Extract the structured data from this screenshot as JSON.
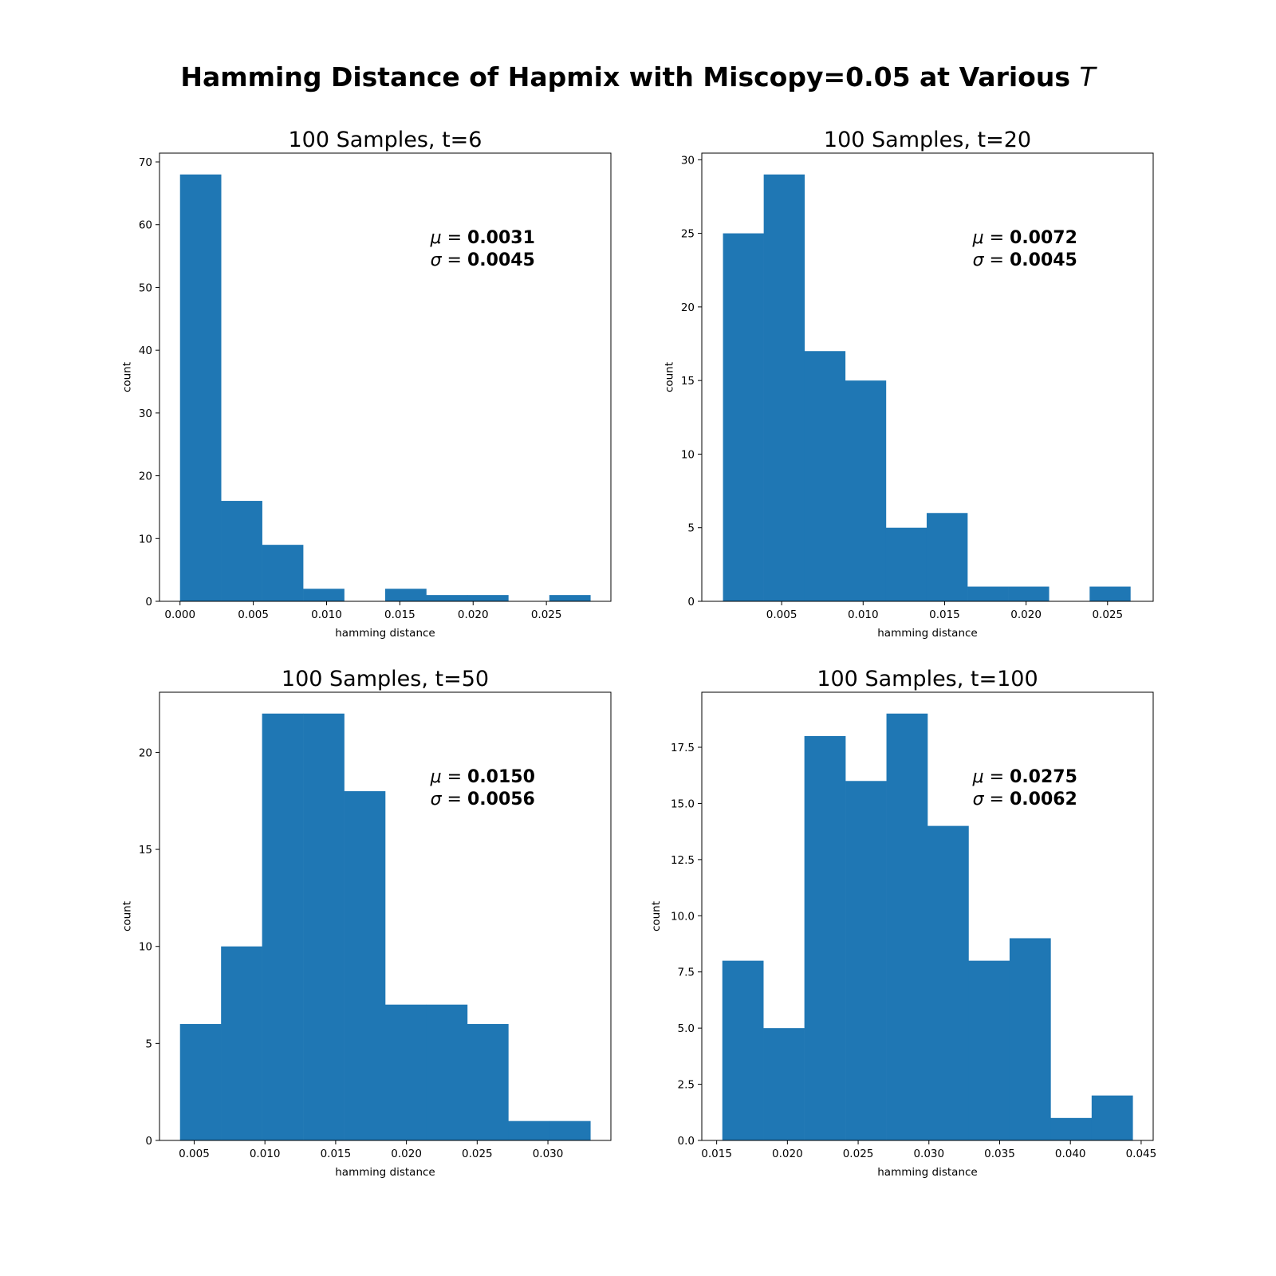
{
  "figure": {
    "title_main": "Hamming Distance of Hapmix with Miscopy=0.05 at Various ",
    "title_symbol": "T"
  },
  "chart_data": [
    {
      "type": "bar",
      "title": "100 Samples, t=6",
      "xlabel": "hamming distance",
      "ylabel": "count",
      "bin_edges": [
        0.0,
        0.0028,
        0.0056,
        0.0084,
        0.0112,
        0.014,
        0.0168,
        0.0196,
        0.0224,
        0.0252,
        0.028
      ],
      "values": [
        68,
        16,
        9,
        2,
        0,
        2,
        1,
        1,
        0,
        1
      ],
      "xlim": [
        -0.0014,
        0.0294
      ],
      "ylim": [
        0,
        71.4
      ],
      "xticks": [
        0.0,
        0.005,
        0.01,
        0.015,
        0.02,
        0.025
      ],
      "xtick_labels": [
        "0.000",
        "0.005",
        "0.010",
        "0.015",
        "0.020",
        "0.025"
      ],
      "yticks": [
        0,
        10,
        20,
        30,
        40,
        50,
        60,
        70
      ],
      "ytick_labels": [
        "0",
        "10",
        "20",
        "30",
        "40",
        "50",
        "60",
        "70"
      ],
      "annotation": {
        "mu_symbol": "μ",
        "mu_value": "0.0031",
        "sigma_symbol": "σ",
        "sigma_value": "0.0045"
      },
      "color": "#1f77b4",
      "grid": false
    },
    {
      "type": "bar",
      "title": "100 Samples, t=20",
      "xlabel": "hamming distance",
      "ylabel": "count",
      "bin_edges": [
        0.0014,
        0.0039,
        0.0064,
        0.0089,
        0.0114,
        0.0139,
        0.0164,
        0.0189,
        0.0214,
        0.0239,
        0.0264
      ],
      "values": [
        25,
        29,
        17,
        15,
        5,
        6,
        1,
        1,
        0,
        1
      ],
      "xlim": [
        0.0001,
        0.0278
      ],
      "ylim": [
        0,
        30.45
      ],
      "xticks": [
        0.005,
        0.01,
        0.015,
        0.02,
        0.025
      ],
      "xtick_labels": [
        "0.005",
        "0.010",
        "0.015",
        "0.020",
        "0.025"
      ],
      "yticks": [
        0,
        5,
        10,
        15,
        20,
        25,
        30
      ],
      "ytick_labels": [
        "0",
        "5",
        "10",
        "15",
        "20",
        "25",
        "30"
      ],
      "annotation": {
        "mu_symbol": "μ",
        "mu_value": "0.0072",
        "sigma_symbol": "σ",
        "sigma_value": "0.0045"
      },
      "color": "#1f77b4",
      "grid": false
    },
    {
      "type": "bar",
      "title": "100 Samples, t=50",
      "xlabel": "hamming distance",
      "ylabel": "count",
      "bin_edges": [
        0.004,
        0.0069,
        0.0098,
        0.0127,
        0.0156,
        0.0185,
        0.0214,
        0.0243,
        0.0272,
        0.0301,
        0.033
      ],
      "values": [
        6,
        10,
        22,
        22,
        18,
        7,
        7,
        6,
        1,
        1
      ],
      "xlim": [
        0.00255,
        0.03445
      ],
      "ylim": [
        0,
        23.1
      ],
      "xticks": [
        0.005,
        0.01,
        0.015,
        0.02,
        0.025,
        0.03
      ],
      "xtick_labels": [
        "0.005",
        "0.010",
        "0.015",
        "0.020",
        "0.025",
        "0.030"
      ],
      "yticks": [
        0,
        5,
        10,
        15,
        20
      ],
      "ytick_labels": [
        "0",
        "5",
        "10",
        "15",
        "20"
      ],
      "annotation": {
        "mu_symbol": "μ",
        "mu_value": "0.0150",
        "sigma_symbol": "σ",
        "sigma_value": "0.0056"
      },
      "color": "#1f77b4",
      "grid": false
    },
    {
      "type": "bar",
      "title": "100 Samples, t=100",
      "xlabel": "hamming distance",
      "ylabel": "count",
      "bin_edges": [
        0.0154,
        0.0183,
        0.0212,
        0.0241,
        0.027,
        0.0299,
        0.0328,
        0.0357,
        0.0386,
        0.0415,
        0.0444
      ],
      "values": [
        8,
        5,
        18,
        16,
        19,
        14,
        8,
        9,
        1,
        2
      ],
      "xlim": [
        0.01395,
        0.04585
      ],
      "ylim": [
        0,
        19.95
      ],
      "xticks": [
        0.015,
        0.02,
        0.025,
        0.03,
        0.035,
        0.04,
        0.045
      ],
      "xtick_labels": [
        "0.015",
        "0.020",
        "0.025",
        "0.030",
        "0.035",
        "0.040",
        "0.045"
      ],
      "yticks": [
        0,
        2.5,
        5,
        7.5,
        10,
        12.5,
        15,
        17.5
      ],
      "ytick_labels": [
        "0.0",
        "2.5",
        "5.0",
        "7.5",
        "10.0",
        "12.5",
        "15.0",
        "17.5"
      ],
      "annotation": {
        "mu_symbol": "μ",
        "mu_value": "0.0275",
        "sigma_symbol": "σ",
        "sigma_value": "0.0062"
      },
      "color": "#1f77b4",
      "grid": false
    }
  ]
}
